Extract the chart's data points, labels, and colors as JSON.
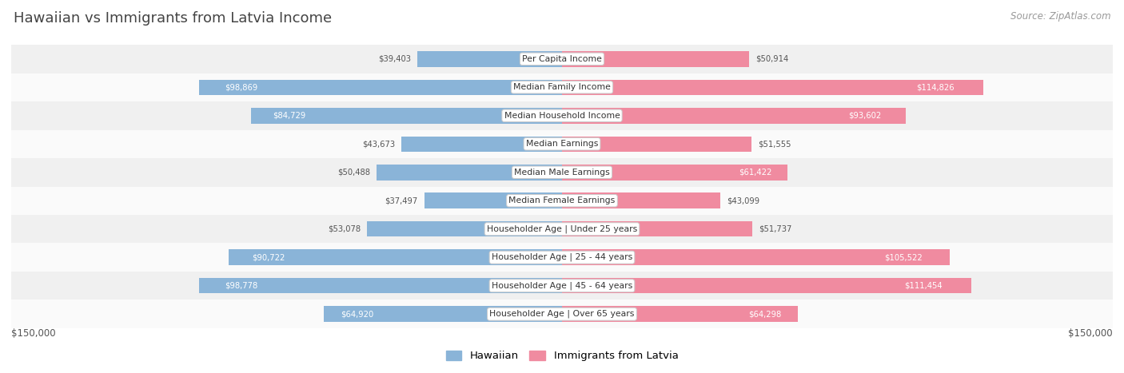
{
  "title": "Hawaiian vs Immigrants from Latvia Income",
  "source": "Source: ZipAtlas.com",
  "categories": [
    "Per Capita Income",
    "Median Family Income",
    "Median Household Income",
    "Median Earnings",
    "Median Male Earnings",
    "Median Female Earnings",
    "Householder Age | Under 25 years",
    "Householder Age | 25 - 44 years",
    "Householder Age | 45 - 64 years",
    "Householder Age | Over 65 years"
  ],
  "hawaiian_values": [
    39403,
    98869,
    84729,
    43673,
    50488,
    37497,
    53078,
    90722,
    98778,
    64920
  ],
  "latvia_values": [
    50914,
    114826,
    93602,
    51555,
    61422,
    43099,
    51737,
    105522,
    111454,
    64298
  ],
  "hawaiian_labels": [
    "$39,403",
    "$98,869",
    "$84,729",
    "$43,673",
    "$50,488",
    "$37,497",
    "$53,078",
    "$90,722",
    "$98,778",
    "$64,920"
  ],
  "latvia_labels": [
    "$50,914",
    "$114,826",
    "$93,602",
    "$51,555",
    "$61,422",
    "$43,099",
    "$51,737",
    "$105,522",
    "$111,454",
    "$64,298"
  ],
  "max_value": 150000,
  "hawaiian_color": "#8ab4d8",
  "latvia_color": "#f08ba0",
  "row_bg_odd": "#f0f0f0",
  "row_bg_even": "#fafafa",
  "title_color": "#444444",
  "source_color": "#999999",
  "bottom_label_color": "#555555",
  "legend_hawaiian_color": "#8ab4d8",
  "legend_latvia_color": "#f08ba0",
  "inside_label_color": "#ffffff",
  "outside_label_color": "#555555",
  "inside_threshold": 60000
}
